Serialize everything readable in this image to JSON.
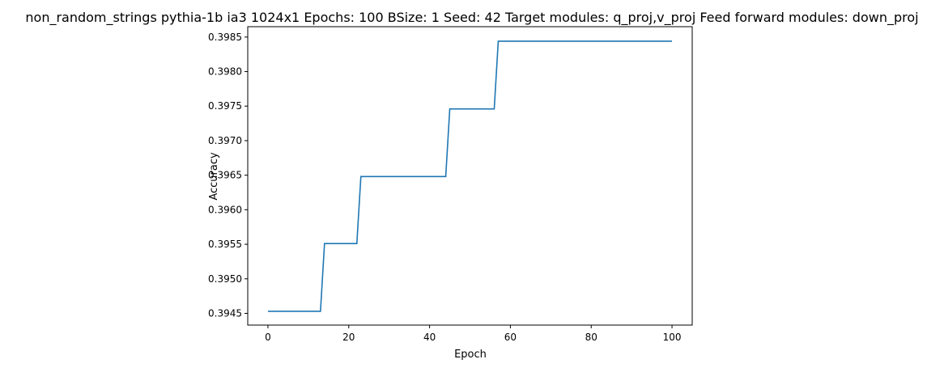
{
  "chart_data": {
    "type": "line",
    "title": "non_random_strings pythia-1b ia3 1024x1 Epochs: 100 BSize: 1 Seed: 42 Target modules: q_proj,v_proj Feed forward modules: down_proj",
    "xlabel": "Epoch",
    "ylabel": "Accuracy",
    "xlim": [
      -5,
      105
    ],
    "ylim": [
      0.39433,
      0.39865
    ],
    "xticks": [
      0,
      20,
      40,
      60,
      80,
      100
    ],
    "xtick_labels": [
      "0",
      "20",
      "40",
      "60",
      "80",
      "100"
    ],
    "yticks": [
      0.3945,
      0.395,
      0.3955,
      0.396,
      0.3965,
      0.397,
      0.3975,
      0.398,
      0.3985
    ],
    "ytick_labels": [
      "0.3945",
      "0.3950",
      "0.3955",
      "0.3960",
      "0.3965",
      "0.3970",
      "0.3975",
      "0.3980",
      "0.3985"
    ],
    "grid": false,
    "line_color": "#1f77b4",
    "series": [
      {
        "x": [
          0,
          13,
          14,
          22,
          23,
          44,
          45,
          56,
          57,
          100
        ],
        "values": [
          0.39453,
          0.39453,
          0.39551,
          0.39551,
          0.39648,
          0.39648,
          0.39746,
          0.39746,
          0.39844,
          0.39844
        ]
      }
    ]
  }
}
